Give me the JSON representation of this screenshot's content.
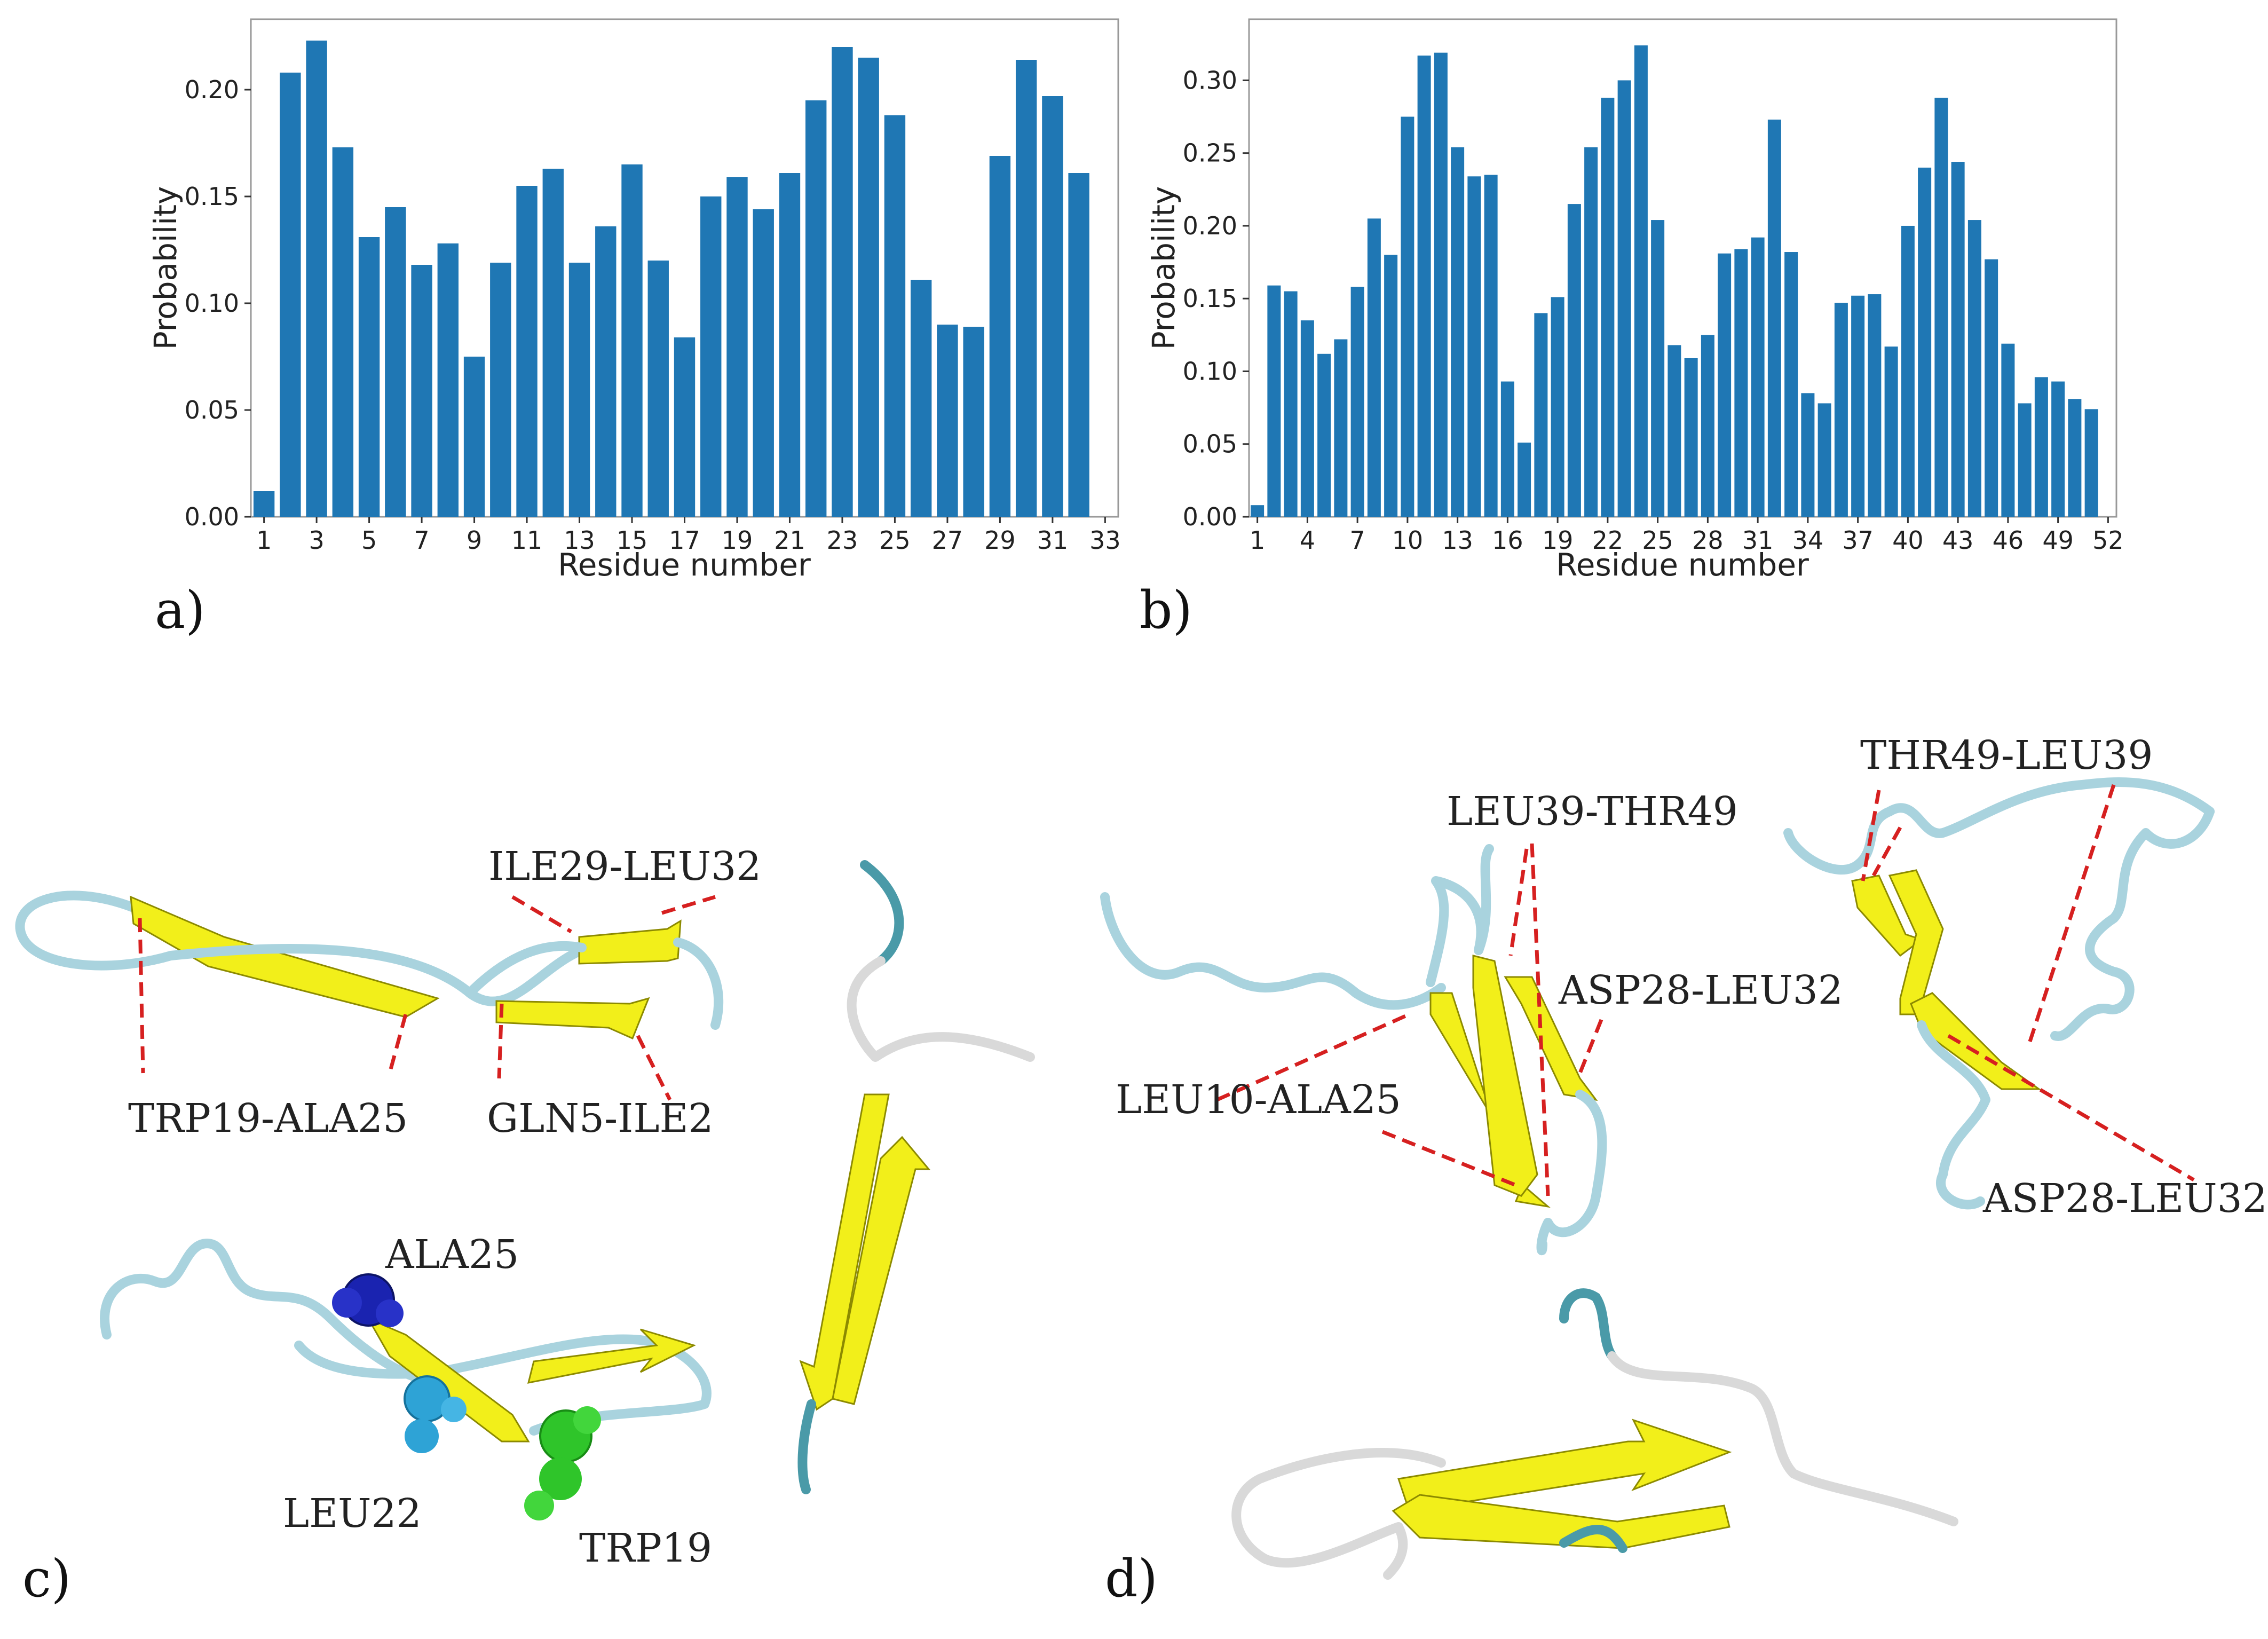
{
  "chart_data": [
    {
      "id": "a",
      "type": "bar",
      "panel_label": "a)",
      "title": "",
      "xlabel": "Residue number",
      "ylabel": "Probability",
      "ylim": [
        0.0,
        0.233
      ],
      "xlim": [
        0.5,
        33.5
      ],
      "x_ticks": [
        1,
        3,
        5,
        7,
        9,
        11,
        13,
        15,
        17,
        19,
        21,
        23,
        25,
        27,
        29,
        31,
        33
      ],
      "y_ticks": [
        "0.00",
        "0.05",
        "0.10",
        "0.15",
        "0.20"
      ],
      "y_tick_values": [
        0.0,
        0.05,
        0.1,
        0.15,
        0.2
      ],
      "color": "#1f77b4",
      "x": [
        1,
        2,
        3,
        4,
        5,
        6,
        7,
        8,
        9,
        10,
        11,
        12,
        13,
        14,
        15,
        16,
        17,
        18,
        19,
        20,
        21,
        22,
        23,
        24,
        25,
        26,
        27,
        28,
        29,
        30,
        31,
        32
      ],
      "values": [
        0.012,
        0.208,
        0.223,
        0.173,
        0.131,
        0.145,
        0.118,
        0.128,
        0.075,
        0.119,
        0.155,
        0.163,
        0.119,
        0.136,
        0.165,
        0.12,
        0.084,
        0.15,
        0.159,
        0.144,
        0.161,
        0.195,
        0.22,
        0.215,
        0.188,
        0.111,
        0.09,
        0.089,
        0.169,
        0.214,
        0.197,
        0.161
      ]
    },
    {
      "id": "b",
      "type": "bar",
      "panel_label": "b)",
      "title": "",
      "xlabel": "Residue number",
      "ylabel": "Probability",
      "ylim": [
        0.0,
        0.342
      ],
      "xlim": [
        0.5,
        52.5
      ],
      "x_ticks": [
        1,
        4,
        7,
        10,
        13,
        16,
        19,
        22,
        25,
        28,
        31,
        34,
        37,
        40,
        43,
        46,
        49,
        52
      ],
      "y_ticks": [
        "0.00",
        "0.05",
        "0.10",
        "0.15",
        "0.20",
        "0.25",
        "0.30"
      ],
      "y_tick_values": [
        0.0,
        0.05,
        0.1,
        0.15,
        0.2,
        0.25,
        0.3
      ],
      "color": "#1f77b4",
      "x": [
        1,
        2,
        3,
        4,
        5,
        6,
        7,
        8,
        9,
        10,
        11,
        12,
        13,
        14,
        15,
        16,
        17,
        18,
        19,
        20,
        21,
        22,
        23,
        24,
        25,
        26,
        27,
        28,
        29,
        30,
        31,
        32,
        33,
        34,
        35,
        36,
        37,
        38,
        39,
        40,
        41,
        42,
        43,
        44,
        45,
        46,
        47,
        48,
        49,
        50,
        51
      ],
      "values": [
        0.008,
        0.159,
        0.155,
        0.135,
        0.112,
        0.122,
        0.158,
        0.205,
        0.18,
        0.275,
        0.317,
        0.319,
        0.254,
        0.234,
        0.235,
        0.093,
        0.051,
        0.14,
        0.151,
        0.215,
        0.254,
        0.288,
        0.3,
        0.324,
        0.204,
        0.118,
        0.109,
        0.125,
        0.181,
        0.184,
        0.192,
        0.273,
        0.182,
        0.085,
        0.078,
        0.147,
        0.152,
        0.153,
        0.117,
        0.2,
        0.24,
        0.288,
        0.244,
        0.204,
        0.177,
        0.119,
        0.078,
        0.096,
        0.093,
        0.081,
        0.074
      ]
    }
  ],
  "panel_c": {
    "label": "c)",
    "annotations": [
      "ILE29-LEU32",
      "TRP19-ALA25",
      "GLN5-ILE2",
      "ALA25",
      "LEU22",
      "TRP19"
    ],
    "residue_colors": {
      "ALA25": "#1a23b0",
      "LEU22": "#2ea3d6",
      "TRP19": "#2fc52a"
    }
  },
  "panel_d": {
    "label": "d)",
    "annotations": [
      "LEU39-THR49",
      "ASP28-LEU32",
      "LEU10-ALA25",
      "THR49-LEU39",
      "ASP28-LEU32"
    ]
  },
  "colors": {
    "bar": "#1f77b4",
    "sheet": "#f2ef1a",
    "coil": "#a9d3de",
    "leader": "#d62020"
  }
}
